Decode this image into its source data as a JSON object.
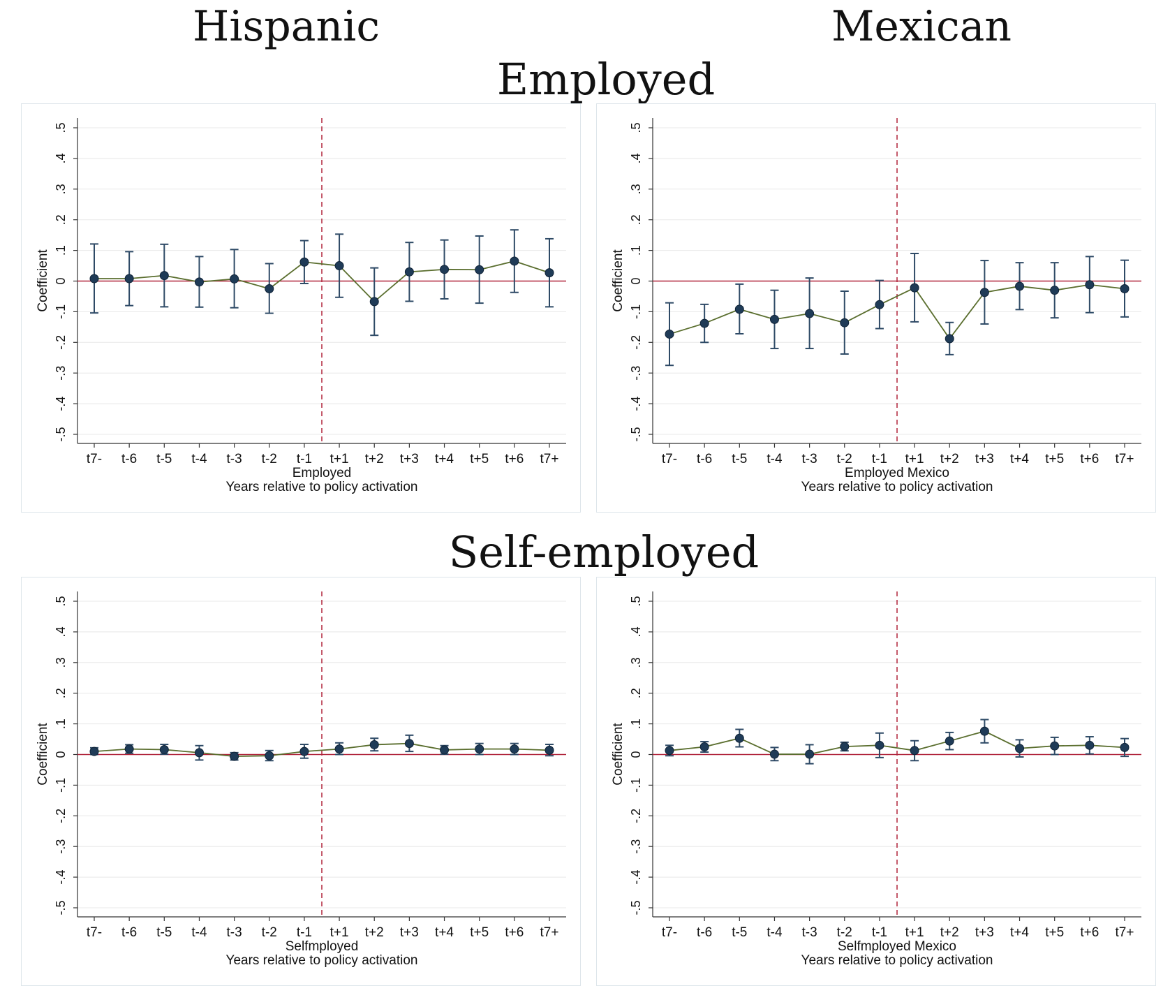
{
  "headings": {
    "col_left": "Hispanic",
    "col_right": "Mexican",
    "row_top": "Employed",
    "row_bottom": "Self-employed"
  },
  "colors": {
    "marker": "#1f3b57",
    "error_bar": "#2e4a66",
    "line": "#5a6e2e",
    "zero_line": "#b0233a",
    "event_line": "#b0233a",
    "grid": "#e8e8e8"
  },
  "chart_data": [
    {
      "type": "line",
      "title": "",
      "xlabel": "Employed",
      "xlabel2": "Years relative to policy activation",
      "ylabel": "Coefficient",
      "ylim": [
        -0.5,
        0.5
      ],
      "yticks": [
        "-.5",
        "-.4",
        "-.3",
        "-.2",
        "-.1",
        "0",
        ".1",
        ".2",
        ".3",
        ".4",
        ".5"
      ],
      "categories": [
        "t7-",
        "t-6",
        "t-5",
        "t-4",
        "t-3",
        "t-2",
        "t-1",
        "t+1",
        "t+2",
        "t+3",
        "t+4",
        "t+5",
        "t+6",
        "t7+"
      ],
      "event_after_index": 6,
      "values": [
        0.008,
        0.008,
        0.018,
        -0.003,
        0.007,
        -0.025,
        0.062,
        0.05,
        -0.067,
        0.03,
        0.038,
        0.037,
        0.065,
        0.027
      ],
      "ci_low": [
        -0.104,
        -0.08,
        -0.084,
        -0.085,
        -0.087,
        -0.105,
        -0.008,
        -0.053,
        -0.177,
        -0.066,
        -0.058,
        -0.072,
        -0.037,
        -0.084
      ],
      "ci_high": [
        0.121,
        0.096,
        0.12,
        0.08,
        0.103,
        0.057,
        0.132,
        0.153,
        0.043,
        0.126,
        0.134,
        0.147,
        0.167,
        0.138
      ],
      "grid": true,
      "legend": "none"
    },
    {
      "type": "line",
      "title": "",
      "xlabel": "Employed Mexico",
      "xlabel2": "Years relative to policy activation",
      "ylabel": "Coefficient",
      "ylim": [
        -0.5,
        0.5
      ],
      "yticks": [
        "-.5",
        "-.4",
        "-.3",
        "-.2",
        "-.1",
        "0",
        ".1",
        ".2",
        ".3",
        ".4",
        ".5"
      ],
      "categories": [
        "t7-",
        "t-6",
        "t-5",
        "t-4",
        "t-3",
        "t-2",
        "t-1",
        "t+1",
        "t+2",
        "t+3",
        "t+4",
        "t+5",
        "t+6",
        "t7+"
      ],
      "event_after_index": 6,
      "values": [
        -0.173,
        -0.138,
        -0.092,
        -0.125,
        -0.106,
        -0.136,
        -0.077,
        -0.022,
        -0.188,
        -0.037,
        -0.017,
        -0.03,
        -0.012,
        -0.025
      ],
      "ci_low": [
        -0.275,
        -0.2,
        -0.172,
        -0.22,
        -0.22,
        -0.238,
        -0.155,
        -0.133,
        -0.24,
        -0.14,
        -0.093,
        -0.12,
        -0.103,
        -0.117
      ],
      "ci_high": [
        -0.071,
        -0.076,
        -0.01,
        -0.03,
        0.01,
        -0.033,
        0.002,
        0.09,
        -0.135,
        0.067,
        0.06,
        0.06,
        0.08,
        0.068
      ],
      "grid": true,
      "legend": "none"
    },
    {
      "type": "line",
      "title": "",
      "xlabel": "Selfmployed",
      "xlabel2": "Years relative to policy activation",
      "ylabel": "Coefficient",
      "ylim": [
        -0.5,
        0.5
      ],
      "yticks": [
        "-.5",
        "-.4",
        "-.3",
        "-.2",
        "-.1",
        "0",
        ".1",
        ".2",
        ".3",
        ".4",
        ".5"
      ],
      "categories": [
        "t7-",
        "t-6",
        "t-5",
        "t-4",
        "t-3",
        "t-2",
        "t-1",
        "t+1",
        "t+2",
        "t+3",
        "t+4",
        "t+5",
        "t+6",
        "t7+"
      ],
      "event_after_index": 6,
      "values": [
        0.01,
        0.018,
        0.016,
        0.006,
        -0.006,
        -0.004,
        0.01,
        0.018,
        0.032,
        0.036,
        0.015,
        0.018,
        0.018,
        0.014
      ],
      "ci_low": [
        0.0,
        0.004,
        0.001,
        -0.018,
        -0.018,
        -0.02,
        -0.012,
        0.0,
        0.012,
        0.01,
        0.001,
        0.0,
        0.0,
        -0.004
      ],
      "ci_high": [
        0.022,
        0.032,
        0.033,
        0.029,
        0.006,
        0.013,
        0.033,
        0.038,
        0.053,
        0.063,
        0.029,
        0.036,
        0.036,
        0.033
      ],
      "grid": true,
      "legend": "none"
    },
    {
      "type": "line",
      "title": "",
      "xlabel": "Selfmployed Mexico",
      "xlabel2": "Years relative to policy activation",
      "ylabel": "Coefficient",
      "ylim": [
        -0.5,
        0.5
      ],
      "yticks": [
        "-.5",
        "-.4",
        "-.3",
        "-.2",
        "-.1",
        "0",
        ".1",
        ".2",
        ".3",
        ".4",
        ".5"
      ],
      "categories": [
        "t7-",
        "t-6",
        "t-5",
        "t-4",
        "t-3",
        "t-2",
        "t-1",
        "t+1",
        "t+2",
        "t+3",
        "t+4",
        "t+5",
        "t+6",
        "t7+"
      ],
      "event_after_index": 6,
      "values": [
        0.013,
        0.025,
        0.053,
        0.001,
        0.001,
        0.026,
        0.03,
        0.013,
        0.044,
        0.076,
        0.02,
        0.028,
        0.03,
        0.023
      ],
      "ci_low": [
        -0.004,
        0.008,
        0.025,
        -0.02,
        -0.03,
        0.012,
        -0.01,
        -0.02,
        0.016,
        0.038,
        -0.008,
        0.0,
        0.002,
        -0.006
      ],
      "ci_high": [
        0.03,
        0.042,
        0.082,
        0.023,
        0.032,
        0.04,
        0.07,
        0.045,
        0.072,
        0.114,
        0.048,
        0.056,
        0.058,
        0.052
      ],
      "grid": true,
      "legend": "none"
    }
  ]
}
